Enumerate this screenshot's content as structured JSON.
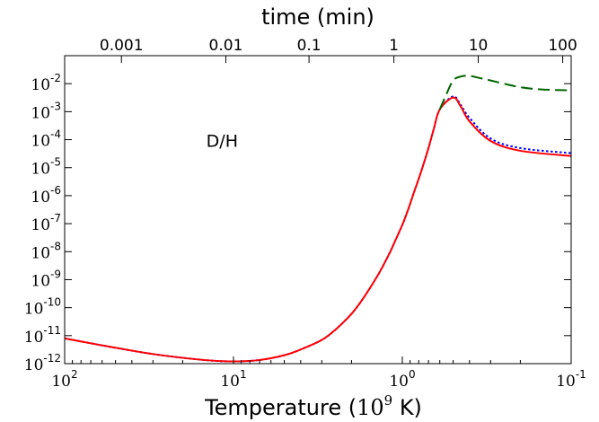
{
  "chart_data": {
    "type": "line",
    "title": "",
    "annotation": "D/H",
    "xlabel": {
      "prefix": "Temperature  (",
      "base": "10",
      "sup": "9",
      "suffix": "  K)"
    },
    "top_xlabel": "time (min)",
    "ylabel": "",
    "x_scale": "log",
    "x_reversed": true,
    "xlim": [
      100,
      0.1
    ],
    "y_scale": "log",
    "ylim": [
      1e-12,
      0.1
    ],
    "grid": false,
    "legend": "none",
    "x_ticks": [
      {
        "value": 100,
        "base": "10",
        "exp": "2"
      },
      {
        "value": 10,
        "base": "10",
        "exp": "1"
      },
      {
        "value": 1,
        "base": "10",
        "exp": "0"
      },
      {
        "value": 0.1,
        "base": "10",
        "exp": "-1"
      }
    ],
    "y_ticks": [
      {
        "value": 1e-12,
        "base": "10",
        "exp": "-12"
      },
      {
        "value": 1e-11,
        "base": "10",
        "exp": "-11"
      },
      {
        "value": 1e-10,
        "base": "10",
        "exp": "-10"
      },
      {
        "value": 1e-09,
        "base": "10",
        "exp": "-9"
      },
      {
        "value": 1e-08,
        "base": "10",
        "exp": "-8"
      },
      {
        "value": 1e-07,
        "base": "10",
        "exp": "-7"
      },
      {
        "value": 1e-06,
        "base": "10",
        "exp": "-6"
      },
      {
        "value": 1e-05,
        "base": "10",
        "exp": "-5"
      },
      {
        "value": 0.0001,
        "base": "10",
        "exp": "-4"
      },
      {
        "value": 0.001,
        "base": "10",
        "exp": "-3"
      },
      {
        "value": 0.01,
        "base": "10",
        "exp": "-2"
      }
    ],
    "top_ticks": [
      {
        "label": "0.001",
        "T": 46.1
      },
      {
        "label": "0.01",
        "T": 11.1
      },
      {
        "label": "0.1",
        "T": 3.57
      },
      {
        "label": "1",
        "T": 1.122
      },
      {
        "label": "10",
        "T": 0.355
      },
      {
        "label": "100",
        "T": 0.1122
      }
    ],
    "series": [
      {
        "color": "#0000ff",
        "style": "dotted",
        "x": [
          100,
          60,
          30,
          15,
          10,
          7,
          5,
          4,
          3,
          2.5,
          2,
          1.7,
          1.4,
          1.2,
          1.1,
          1.0,
          0.95,
          0.9,
          0.85,
          0.8,
          0.75,
          0.7,
          0.65,
          0.6,
          0.5,
          0.45,
          0.4,
          0.3,
          0.2,
          0.1
        ],
        "y": [
          8e-12,
          4.5e-12,
          2.2e-12,
          1.35e-12,
          1.2e-12,
          1.35e-12,
          2e-12,
          3.2e-12,
          7e-12,
          1.6e-11,
          6e-11,
          2.2e-10,
          1.4e-09,
          8e-09,
          2.5e-08,
          9e-08,
          2e-07,
          5e-07,
          1.4e-06,
          4e-06,
          1.3e-05,
          5e-05,
          0.00025,
          0.0012,
          0.0035,
          0.0017,
          0.0006,
          0.00011,
          5e-05,
          3.3e-05
        ]
      },
      {
        "color": "#ff0000",
        "style": "solid",
        "x": [
          100,
          60,
          30,
          15,
          10,
          7,
          5,
          4,
          3,
          2.5,
          2,
          1.7,
          1.4,
          1.2,
          1.1,
          1.0,
          0.95,
          0.9,
          0.85,
          0.8,
          0.75,
          0.7,
          0.65,
          0.6,
          0.5,
          0.45,
          0.4,
          0.3,
          0.2,
          0.1
        ],
        "y": [
          8e-12,
          4.5e-12,
          2.2e-12,
          1.35e-12,
          1.2e-12,
          1.35e-12,
          2e-12,
          3.2e-12,
          7e-12,
          1.6e-11,
          6e-11,
          2.2e-10,
          1.4e-09,
          8e-09,
          2.5e-08,
          9e-08,
          2e-07,
          5e-07,
          1.4e-06,
          4e-06,
          1.3e-05,
          5e-05,
          0.00025,
          0.0012,
          0.0032,
          0.0015,
          0.00045,
          9e-05,
          4e-05,
          2.6e-05
        ]
      },
      {
        "color": "#006400",
        "style": "dashed",
        "x": [
          0.6,
          0.55,
          0.5,
          0.45,
          0.4,
          0.35,
          0.3,
          0.25,
          0.2,
          0.15,
          0.1
        ],
        "y": [
          0.0012,
          0.004,
          0.013,
          0.018,
          0.019,
          0.016,
          0.013,
          0.01,
          0.0075,
          0.0062,
          0.0058
        ]
      }
    ]
  }
}
